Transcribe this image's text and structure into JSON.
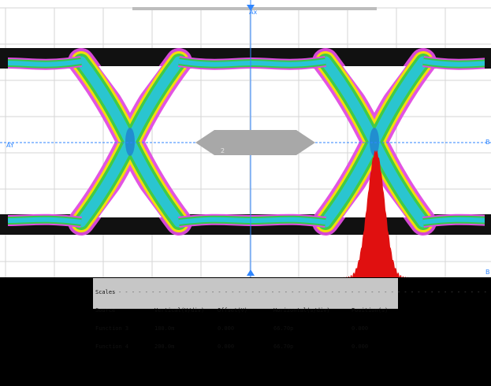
{
  "window": {
    "kind": "oscilloscope-eye-diagram"
  },
  "cursors": {
    "x_label": "Ax",
    "y_label": "AY",
    "right_top_label": "B",
    "right_bottom_label": "B"
  },
  "marker": {
    "label": "2"
  },
  "colors": {
    "background": "#ffffff",
    "grid": "#d6d6d6",
    "cursor": "#2f86ff",
    "histogram": "#e01010",
    "panel": "#c6c6c6",
    "scrollbar": "#bdbdbd"
  },
  "scales": {
    "title": "Scales",
    "headers": [
      "Source",
      "Vertical(V/div)",
      "Offset(V)",
      "Horizontal(s/div)",
      "Position(s)"
    ],
    "rows": [
      [
        "Function 3",
        "180.0m",
        "0.000",
        "66.70p",
        "0.000"
      ],
      [
        "Function 4",
        "200.0m",
        "0.000",
        "66.70p",
        "0.000"
      ]
    ]
  }
}
